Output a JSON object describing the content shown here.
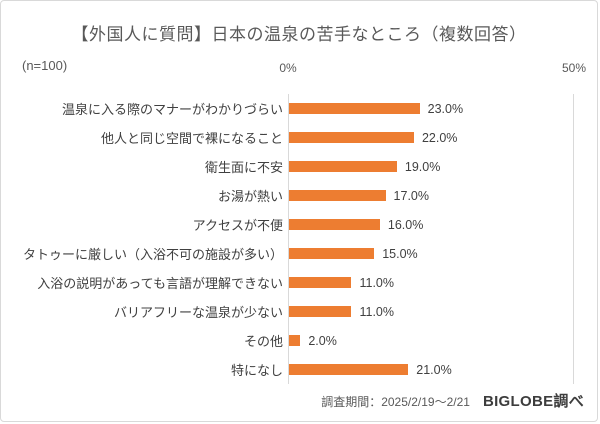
{
  "card": {
    "title": "【外国人に質問】日本の温泉の苦手なところ（複数回答）",
    "sample_size_label": "(n=100)",
    "footer": {
      "survey_period": "調査期間：2025/2/19～2/21",
      "source": "BIGLOBE調べ"
    }
  },
  "chart_data": {
    "type": "bar",
    "orientation": "horizontal",
    "title": "【外国人に質問】日本の温泉の苦手なところ（複数回答）",
    "categories": [
      "温泉に入る際のマナーがわかりづらい",
      "他人と同じ空間で裸になること",
      "衛生面に不安",
      "お湯が熱い",
      "アクセスが不便",
      "タトゥーに厳しい（入浴不可の施設が多い）",
      "入浴の説明があっても言語が理解できない",
      "バリアフリーな温泉が少ない",
      "その他",
      "特になし"
    ],
    "values": [
      23.0,
      22.0,
      19.0,
      17.0,
      16.0,
      15.0,
      11.0,
      11.0,
      2.0,
      21.0
    ],
    "value_labels": [
      "23.0%",
      "22.0%",
      "19.0%",
      "17.0%",
      "16.0%",
      "15.0%",
      "11.0%",
      "11.0%",
      "2.0%",
      "21.0%"
    ],
    "xlim": [
      0,
      50
    ],
    "x_tick_labels": [
      "0%",
      "50%"
    ],
    "sample_size": 100,
    "bar_color": "#ED7D31",
    "gridline_color": "#D9D9D9",
    "grid": "vertical-edges-only",
    "legend": "none"
  }
}
